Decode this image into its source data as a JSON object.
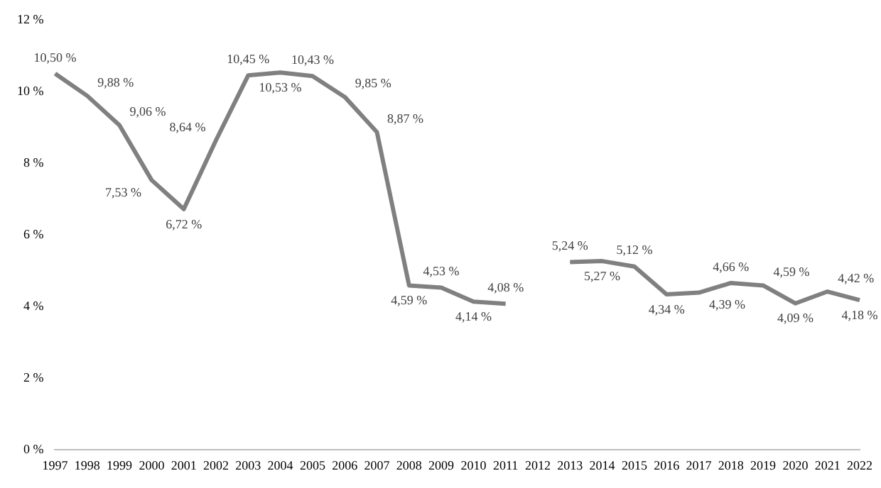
{
  "chart_data": {
    "type": "line",
    "categories": [
      "1997",
      "1998",
      "1999",
      "2000",
      "2001",
      "2002",
      "2003",
      "2004",
      "2005",
      "2006",
      "2007",
      "2008",
      "2009",
      "2010",
      "2011",
      "2012",
      "2013",
      "2014",
      "2015",
      "2016",
      "2017",
      "2018",
      "2019",
      "2020",
      "2021",
      "2022"
    ],
    "series": [
      {
        "color": "#808080",
        "values": [
          10.5,
          9.88,
          9.06,
          7.53,
          6.72,
          8.64,
          10.45,
          10.53,
          10.43,
          9.85,
          8.87,
          4.59,
          4.53,
          4.14,
          4.08,
          null,
          5.24,
          5.27,
          5.12,
          4.34,
          4.39,
          4.66,
          4.59,
          4.09,
          4.42,
          4.18
        ],
        "value_labels": [
          "10,50 %",
          "9,88 %",
          "9,06 %",
          "7,53 %",
          "6,72 %",
          "8,64 %",
          "10,45 %",
          "10,53 %",
          "10,43 %",
          "9,85 %",
          "8,87 %",
          "4,59 %",
          "4,53 %",
          "4,14 %",
          "4,08 %",
          null,
          "5,24 %",
          "5,27 %",
          "5,12 %",
          "4,34 %",
          "4,39 %",
          "4,66 %",
          "4,59 %",
          "4,09 %",
          "4,42 %",
          "4,18 %"
        ]
      }
    ],
    "ylim": [
      0,
      12
    ],
    "yticks": [
      {
        "value": 0,
        "label": "0 %"
      },
      {
        "value": 2,
        "label": "2 %"
      },
      {
        "value": 4,
        "label": "4 %"
      },
      {
        "value": 6,
        "label": "6 %"
      },
      {
        "value": 8,
        "label": "8 %"
      },
      {
        "value": 10,
        "label": "10 %"
      },
      {
        "value": 12,
        "label": "12 %"
      }
    ],
    "grid": false,
    "legend": false,
    "marker": "none",
    "line_style": "solid"
  }
}
